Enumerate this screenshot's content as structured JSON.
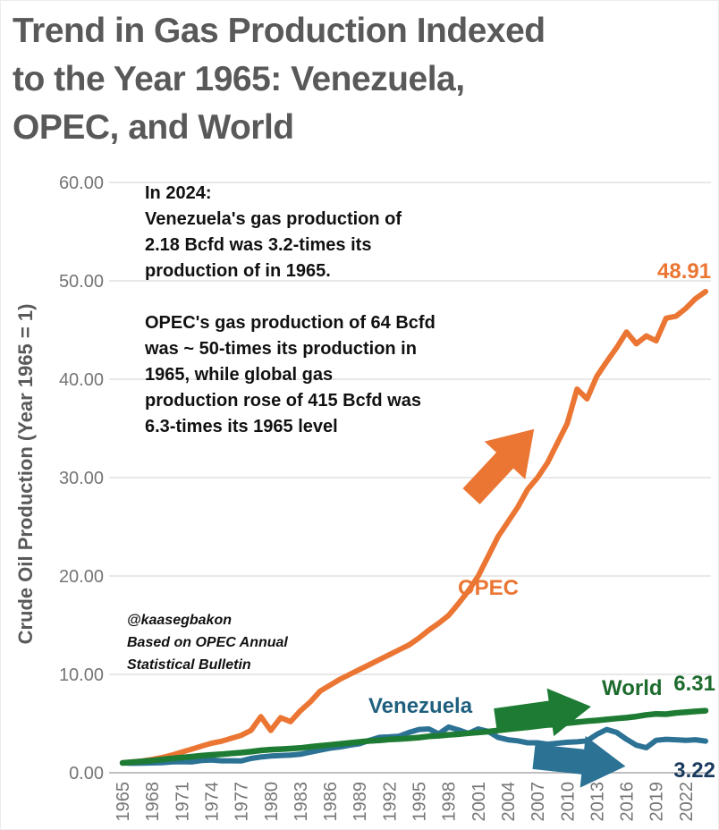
{
  "page": {
    "title": "Trend in Gas Production Indexed\nto the Year 1965: Venezuela,\nOPEC, and World"
  },
  "annotation": {
    "text": "In 2024:\nVenezuela's gas production of\n2.18 Bcfd was 3.2-times its\nproduction of in 1965.\n\nOPEC's gas production of 64 Bcfd\nwas ~ 50-times its production in\n1965, while global gas\nproduction rose of 415 Bcfd was\n6.3-times its 1965 level"
  },
  "attribution": {
    "text": "@kaasegbakon\nBased on OPEC Annual\nStatistical Bulletin"
  },
  "colors": {
    "title": "#595959",
    "tick_label": "#757575",
    "gridline": "#D9D9D9",
    "axis_line": "#BFBFBF",
    "annotation_text": "#111111",
    "opec_orange": "#EB7532",
    "world_green": "#1E7B33",
    "venezuela_blue": "#2C7295"
  },
  "chart_data": {
    "type": "line",
    "title": "Trend in Gas Production Indexed to the Year 1965: Venezuela, OPEC, and World",
    "xlabel": "",
    "ylabel": "Crude Oil Production (Year 1965 = 1)",
    "ylim": [
      0,
      60
    ],
    "grid": "horizontal",
    "legend_position": "inline-labels",
    "y_tick_values": [
      0,
      10,
      20,
      30,
      40,
      50,
      60
    ],
    "y_tick_labels": [
      "0.00",
      "10.00",
      "20.00",
      "30.00",
      "40.00",
      "50.00",
      "60.00"
    ],
    "x_tick_years": [
      1965,
      1968,
      1971,
      1974,
      1977,
      1980,
      1983,
      1986,
      1989,
      1992,
      1995,
      1998,
      2001,
      2004,
      2007,
      2010,
      2013,
      2016,
      2019,
      2022
    ],
    "years": [
      1965,
      1966,
      1967,
      1968,
      1969,
      1970,
      1971,
      1972,
      1973,
      1974,
      1975,
      1976,
      1977,
      1978,
      1979,
      1980,
      1981,
      1982,
      1983,
      1984,
      1985,
      1986,
      1987,
      1988,
      1989,
      1990,
      1991,
      1992,
      1993,
      1994,
      1995,
      1996,
      1997,
      1998,
      1999,
      2000,
      2001,
      2002,
      2003,
      2004,
      2005,
      2006,
      2007,
      2008,
      2009,
      2010,
      2011,
      2012,
      2013,
      2014,
      2015,
      2016,
      2017,
      2018,
      2019,
      2020,
      2021,
      2022,
      2023,
      2024
    ],
    "series": [
      {
        "name": "OPEC",
        "label": "OPEC",
        "end_label": "48.91",
        "end_value": 48.91,
        "color": "#EB7532",
        "label_color": "#EB7532",
        "value_color": "#EB7532",
        "values": [
          1.0,
          1.1,
          1.2,
          1.35,
          1.55,
          1.8,
          2.1,
          2.4,
          2.7,
          3.0,
          3.2,
          3.5,
          3.8,
          4.3,
          5.7,
          4.3,
          5.6,
          5.2,
          6.3,
          7.2,
          8.3,
          8.9,
          9.5,
          10.0,
          10.5,
          11.0,
          11.5,
          12.0,
          12.5,
          13.0,
          13.7,
          14.5,
          15.2,
          16.0,
          17.2,
          18.5,
          20.0,
          22.0,
          24.0,
          25.5,
          27.0,
          28.8,
          30.0,
          31.5,
          33.5,
          35.5,
          39.0,
          38.0,
          40.3,
          41.8,
          43.2,
          44.8,
          43.6,
          44.4,
          43.9,
          46.2,
          46.4,
          47.2,
          48.2,
          48.91
        ]
      },
      {
        "name": "Venezuela",
        "label": "Venezuela",
        "end_label": "3.22",
        "end_value": 3.22,
        "color": "#2C7295",
        "label_color": "#20607F",
        "value_color": "#1B3C5F",
        "values": [
          1.0,
          0.96,
          0.98,
          1.0,
          1.03,
          1.1,
          1.13,
          1.1,
          1.25,
          1.3,
          1.22,
          1.22,
          1.2,
          1.45,
          1.6,
          1.7,
          1.75,
          1.8,
          1.88,
          2.1,
          2.3,
          2.5,
          2.62,
          2.8,
          2.95,
          3.3,
          3.6,
          3.65,
          3.72,
          4.1,
          4.4,
          4.45,
          3.95,
          4.65,
          4.35,
          4.0,
          4.45,
          4.2,
          3.6,
          3.35,
          3.25,
          3.05,
          3.05,
          2.9,
          3.0,
          3.1,
          3.15,
          3.25,
          3.9,
          4.4,
          4.1,
          3.4,
          2.8,
          2.55,
          3.3,
          3.4,
          3.35,
          3.3,
          3.35,
          3.22
        ]
      },
      {
        "name": "World",
        "label": "World",
        "end_label": "6.31",
        "end_value": 6.31,
        "color": "#1E7B33",
        "label_color": "#1E6B2E",
        "value_color": "#1E6B2E",
        "values": [
          1.0,
          1.08,
          1.16,
          1.25,
          1.35,
          1.45,
          1.55,
          1.64,
          1.74,
          1.82,
          1.88,
          1.97,
          2.05,
          2.15,
          2.27,
          2.35,
          2.4,
          2.45,
          2.52,
          2.64,
          2.74,
          2.84,
          2.94,
          3.04,
          3.14,
          3.24,
          3.3,
          3.38,
          3.43,
          3.5,
          3.58,
          3.7,
          3.76,
          3.85,
          3.92,
          4.02,
          4.1,
          4.18,
          4.3,
          4.42,
          4.52,
          4.62,
          4.75,
          4.86,
          4.9,
          5.05,
          5.15,
          5.25,
          5.32,
          5.42,
          5.52,
          5.6,
          5.72,
          5.88,
          5.98,
          5.95,
          6.08,
          6.16,
          6.24,
          6.31
        ]
      }
    ]
  }
}
